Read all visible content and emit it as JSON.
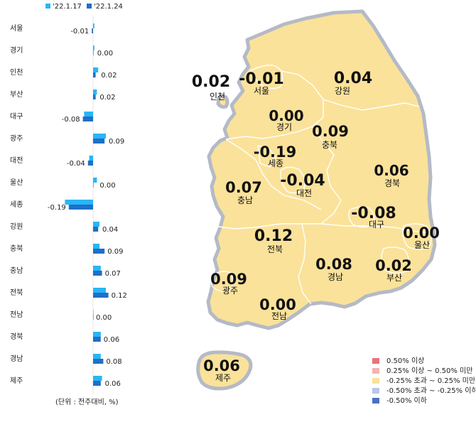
{
  "legend": {
    "week1": "'22.1.17",
    "week2": "'22.1.24",
    "week1_color": "#29b6f6",
    "week2_color": "#1f6fc8"
  },
  "unit_note": "(단위 : 전주대비, %)",
  "chart_data": {
    "type": "bar",
    "orientation": "horizontal",
    "categories": [
      "서울",
      "경기",
      "인천",
      "부산",
      "대구",
      "광주",
      "대전",
      "울산",
      "세종",
      "강원",
      "충북",
      "충남",
      "전북",
      "전남",
      "경북",
      "경남",
      "제주"
    ],
    "series": [
      {
        "name": "'22.1.17",
        "values": [
          0.01,
          0.01,
          0.04,
          0.03,
          -0.07,
          0.1,
          -0.03,
          0.03,
          -0.22,
          0.05,
          0.05,
          0.06,
          0.1,
          0.0,
          0.06,
          0.06,
          0.07
        ]
      },
      {
        "name": "'22.1.24",
        "values": [
          -0.01,
          0.0,
          0.02,
          0.02,
          -0.08,
          0.09,
          -0.04,
          0.0,
          -0.19,
          0.04,
          0.09,
          0.07,
          0.12,
          0.0,
          0.06,
          0.08,
          0.06
        ]
      }
    ],
    "value_labels": [
      "-0.01",
      "0.00",
      "0.02",
      "0.02",
      "-0.08",
      "0.09",
      "-0.04",
      "0.00",
      "-0.19",
      "0.04",
      "0.09",
      "0.07",
      "0.12",
      "0.00",
      "0.06",
      "0.08",
      "0.06"
    ]
  },
  "map": {
    "regions": [
      {
        "name": "인천",
        "value": "0.02"
      },
      {
        "name": "서울",
        "value": "-0.01"
      },
      {
        "name": "강원",
        "value": "0.04"
      },
      {
        "name": "경기",
        "value": "0.00"
      },
      {
        "name": "충북",
        "value": "0.09"
      },
      {
        "name": "세종",
        "value": "-0.19"
      },
      {
        "name": "경북",
        "value": "0.06"
      },
      {
        "name": "충남",
        "value": "0.07"
      },
      {
        "name": "대전",
        "value": "-0.04"
      },
      {
        "name": "대구",
        "value": "-0.08"
      },
      {
        "name": "울산",
        "value": "0.00"
      },
      {
        "name": "전북",
        "value": "0.12"
      },
      {
        "name": "경남",
        "value": "0.08"
      },
      {
        "name": "부산",
        "value": "0.02"
      },
      {
        "name": "광주",
        "value": "0.09"
      },
      {
        "name": "전남",
        "value": "0.00"
      },
      {
        "name": "제주",
        "value": "0.06"
      }
    ],
    "fill_color": "#fbe29a",
    "border_color": "#b4bac6"
  },
  "map_legend": [
    {
      "label": "0.50% 이상",
      "color": "#e8737a"
    },
    {
      "label": "0.25% 이상 ~ 0.50% 미만",
      "color": "#f4b3b3"
    },
    {
      "label": "-0.25% 초과 ~ 0.25% 미만",
      "color": "#fbe29a"
    },
    {
      "label": "-0.50% 초과 ~ -0.25% 이하",
      "color": "#b6c8e6"
    },
    {
      "label": "-0.50% 이하",
      "color": "#4a72c0"
    }
  ]
}
